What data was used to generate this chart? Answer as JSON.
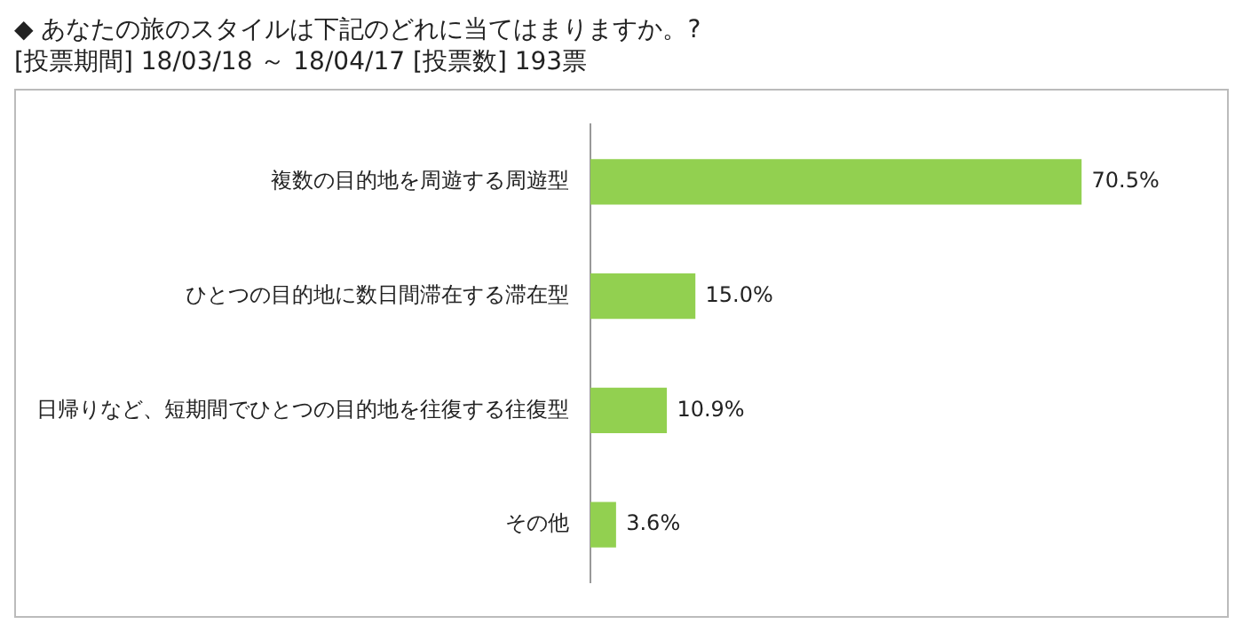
{
  "chart_data": {
    "type": "bar",
    "orientation": "horizontal",
    "title": "◆ あなたの旅のスタイルは下記のどれに当てはまりますか。?",
    "subtitle": "[投票期間] 18/03/18 ～ 18/04/17 [投票数] 193票",
    "categories": [
      "複数の目的地を周遊する周遊型",
      "ひとつの目的地に数日間滞在する滞在型",
      "日帰りなど、短期間でひとつの目的地を往復する往復型",
      "その他"
    ],
    "values": [
      70.5,
      15.0,
      10.9,
      3.6
    ],
    "value_labels": [
      "70.5%",
      "15.0%",
      "10.9%",
      "3.6%"
    ],
    "color": "#92d050",
    "legend": false,
    "grid": false
  }
}
